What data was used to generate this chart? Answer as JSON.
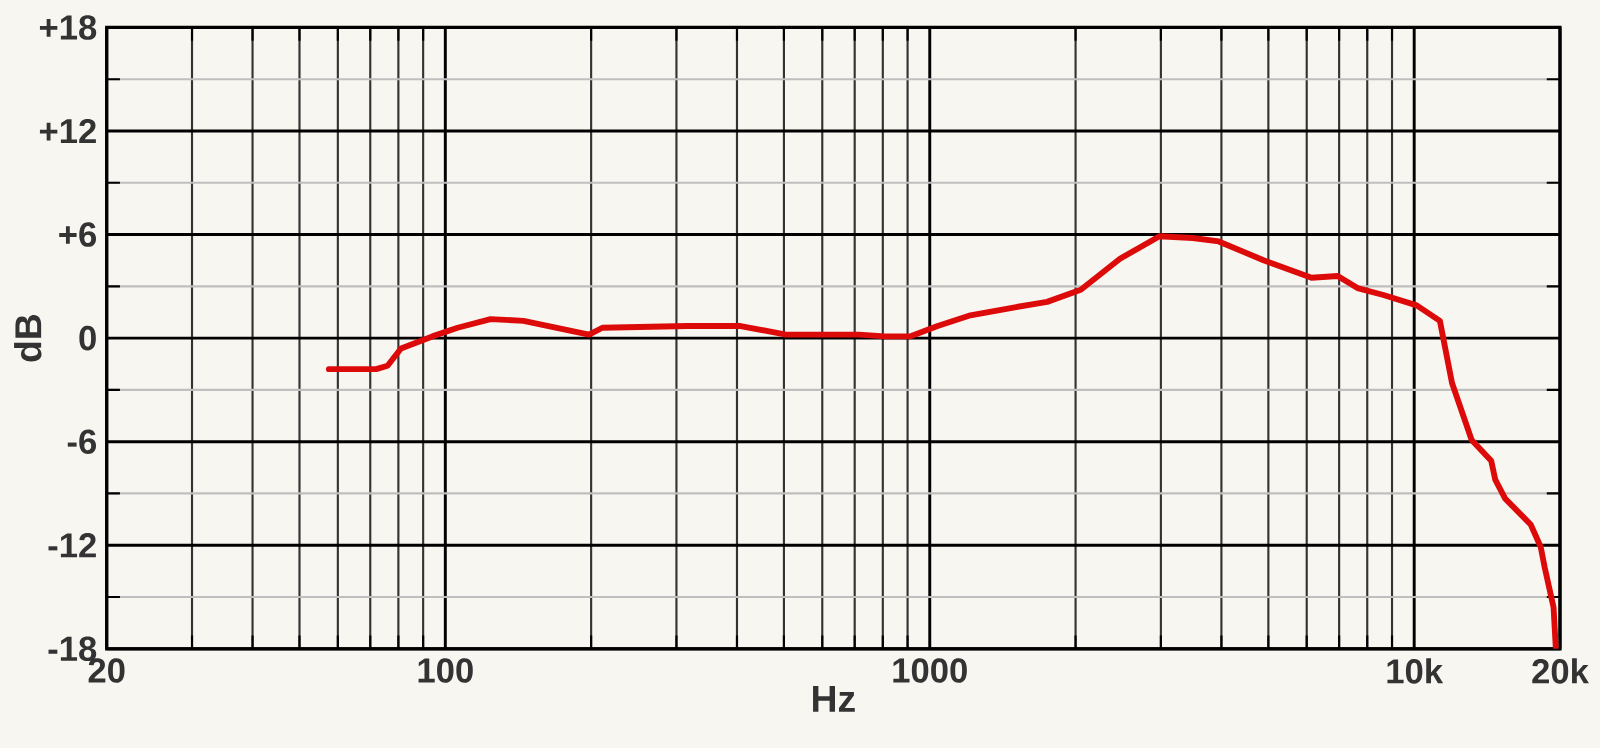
{
  "chart_data": {
    "type": "line",
    "xlabel": "Hz",
    "ylabel": "dB",
    "log": "x",
    "grid": true,
    "xlim": [
      20,
      20000
    ],
    "ylim": [
      -18,
      18
    ],
    "xticks": [
      20,
      {
        "value": 30,
        "label": null
      },
      {
        "value": 40,
        "label": null
      },
      {
        "value": 50,
        "label": null
      },
      {
        "value": 60,
        "label": null
      },
      {
        "value": 70,
        "label": null
      },
      {
        "value": 80,
        "label": null
      },
      {
        "value": 90,
        "label": null
      },
      100,
      {
        "value": 200,
        "label": null
      },
      {
        "value": 300,
        "label": null
      },
      {
        "value": 400,
        "label": null
      },
      {
        "value": 500,
        "label": null
      },
      {
        "value": 600,
        "label": null
      },
      {
        "value": 700,
        "label": null
      },
      {
        "value": 800,
        "label": null
      },
      {
        "value": 900,
        "label": null
      },
      1000,
      {
        "value": 2000,
        "label": null
      },
      {
        "value": 3000,
        "label": null
      },
      {
        "value": 4000,
        "label": null
      },
      {
        "value": 5000,
        "label": null
      },
      {
        "value": 6000,
        "label": null
      },
      {
        "value": 7000,
        "label": null
      },
      {
        "value": 8000,
        "label": null
      },
      {
        "value": 9000,
        "label": null
      },
      {
        "value": 10000,
        "label": "10k"
      },
      {
        "value": 20000,
        "label": "20k"
      }
    ],
    "yticks": [
      {
        "value": -18,
        "label": "-18"
      },
      {
        "value": -15,
        "label": null
      },
      {
        "value": -12,
        "label": "-12"
      },
      {
        "value": -9,
        "label": null
      },
      {
        "value": -6,
        "label": "-6"
      },
      {
        "value": -3,
        "label": null
      },
      0,
      {
        "value": 3,
        "label": null
      },
      {
        "value": 6,
        "label": "+6"
      },
      {
        "value": 9,
        "label": null
      },
      {
        "value": 12,
        "label": "+12"
      },
      {
        "value": 15,
        "label": null
      },
      {
        "value": 18,
        "label": "+18"
      }
    ],
    "series": [
      {
        "color": "#dd0a0a",
        "x": [
          57.5,
          72,
          76,
          81,
          94,
          106,
          124,
          145,
          198,
          211,
          316,
          407,
          505,
          714,
          808,
          910,
          1038,
          1205,
          1508,
          1747,
          2050,
          2470,
          2980,
          3490,
          3950,
          4900,
          6140,
          6950,
          7640,
          8640,
          10120,
          11300,
          11970,
          13140,
          14420,
          14700,
          15410,
          17400,
          18250,
          18600,
          19400,
          19600
        ],
        "values": [
          -1.8,
          -1.8,
          -1.6,
          -0.6,
          0.1,
          0.6,
          1.1,
          1.0,
          0.2,
          0.6,
          0.7,
          0.7,
          0.2,
          0.2,
          0.1,
          0.1,
          0.7,
          1.3,
          1.8,
          2.1,
          2.8,
          4.6,
          5.9,
          5.8,
          5.6,
          4.5,
          3.5,
          3.6,
          2.9,
          2.5,
          1.9,
          1.0,
          -2.6,
          -5.9,
          -7.1,
          -8.2,
          -9.3,
          -10.8,
          -12.1,
          -13.3,
          -15.6,
          -17.9
        ]
      }
    ]
  }
}
